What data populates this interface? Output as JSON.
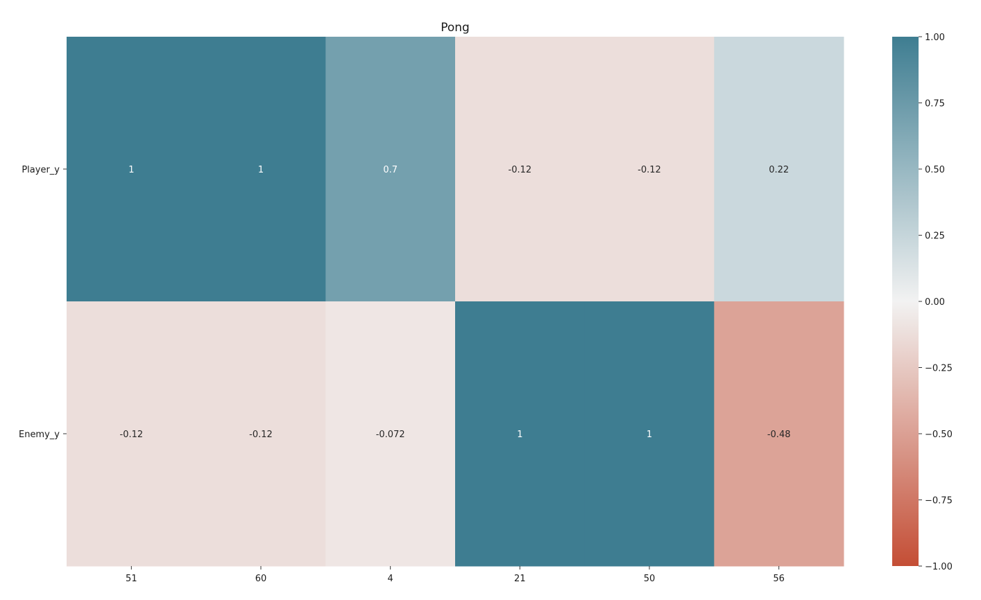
{
  "chart_data": {
    "type": "heatmap",
    "title": "Pong",
    "xlabel": "",
    "ylabel": "",
    "x_categories": [
      "51",
      "60",
      "4",
      "21",
      "50",
      "56"
    ],
    "y_categories": [
      "Player_y",
      "Enemy_y"
    ],
    "values": [
      [
        1,
        1,
        0.7,
        -0.12,
        -0.12,
        0.22
      ],
      [
        -0.12,
        -0.12,
        -0.072,
        1,
        1,
        -0.48
      ]
    ],
    "annotations": [
      [
        "1",
        "1",
        "0.7",
        "-0.12",
        "-0.12",
        "0.22"
      ],
      [
        "-0.12",
        "-0.12",
        "-0.072",
        "1",
        "1",
        "-0.48"
      ]
    ],
    "colorbar": {
      "vmin": -1,
      "vmax": 1,
      "ticks": [
        1.0,
        0.75,
        0.5,
        0.25,
        0.0,
        -0.25,
        -0.5,
        -0.75,
        -1.0
      ],
      "tick_labels": [
        "1.00",
        "0.75",
        "0.50",
        "0.25",
        "0.00",
        "−0.25",
        "−0.50",
        "−0.75",
        "−1.00"
      ],
      "colors": {
        "low": "#c44e35",
        "mid": "#f2f2f2",
        "high": "#3e7d91"
      }
    }
  }
}
